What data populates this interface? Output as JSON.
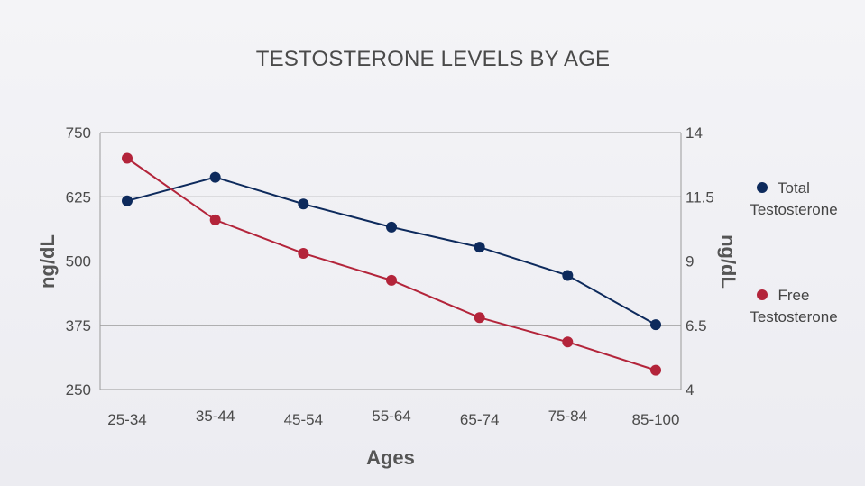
{
  "chart_data": {
    "type": "line",
    "title": "TESTOSTERONE LEVELS BY AGE",
    "xlabel": "Ages",
    "ylabel_left": "ng/dL",
    "ylabel_right": "ng/dL",
    "categories": [
      "25-34",
      "35-44",
      "45-54",
      "55-64",
      "65-74",
      "75-84",
      "85-100"
    ],
    "ylim_left": [
      250,
      750
    ],
    "ylim_right": [
      4,
      14
    ],
    "yticks_left": [
      "250",
      "375",
      "500",
      "625",
      "750"
    ],
    "yticks_right": [
      "4",
      "6.5",
      "9",
      "11.5",
      "14"
    ],
    "grid": true,
    "legend_position": "right",
    "series": [
      {
        "name": "Total Testosterone",
        "legend_lines": [
          "Total",
          "Testosterone"
        ],
        "axis": "left",
        "color": "#0d2a5c",
        "values": [
          617,
          663,
          611,
          566,
          527,
          472,
          376
        ]
      },
      {
        "name": "Free Testosterone",
        "legend_lines": [
          "Free",
          "Testosterone"
        ],
        "axis": "right",
        "color": "#b3243a",
        "values": [
          13.0,
          10.6,
          9.3,
          8.25,
          6.8,
          5.85,
          4.75
        ]
      }
    ]
  }
}
